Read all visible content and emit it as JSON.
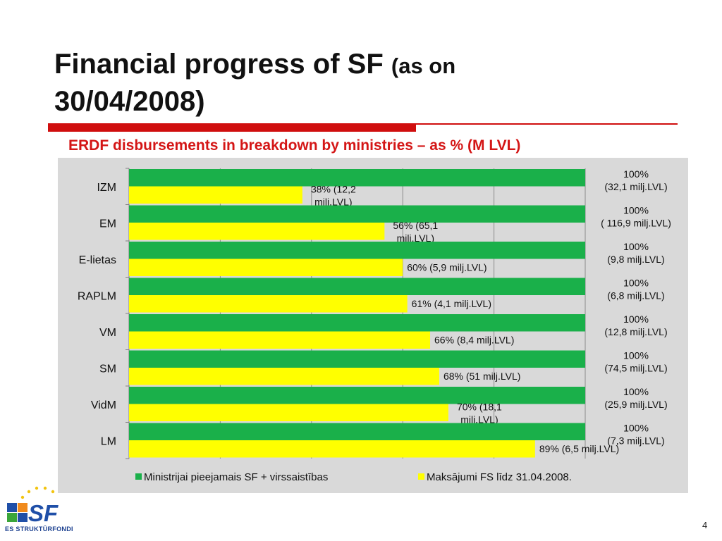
{
  "slide": {
    "title_main": "Financial progress of SF",
    "title_sub_inline": "(as on",
    "title_sub_line2": "30/04/2008)",
    "page_number": "4"
  },
  "logo": {
    "text": "ES STRUKTŪRFONDI",
    "mark": "SF",
    "colors": {
      "blue": "#1f4fa8",
      "orange": "#f08a1c",
      "green": "#3aa63a",
      "star": "#f2c40f"
    }
  },
  "chart_data": {
    "type": "bar",
    "orientation": "horizontal",
    "title": "ERDF disbursements in breakdown by ministries – as % (M LVL)",
    "categories": [
      "IZM",
      "EM",
      "E-lietas",
      "RAPLM",
      "VM",
      "SM",
      "VidM",
      "LM"
    ],
    "xlim": [
      0,
      100
    ],
    "grid": true,
    "legend_position": "bottom",
    "series": [
      {
        "name": "Ministrijai pieejamais SF + virssaistības",
        "color": "#1ab04a",
        "values": [
          100,
          100,
          100,
          100,
          100,
          100,
          100,
          100
        ],
        "labels": [
          [
            "100%",
            "(32,1 milj.LVL)"
          ],
          [
            "100%",
            "( 116,9 milj.LVL)"
          ],
          [
            "100%",
            "(9,8 milj.LVL)"
          ],
          [
            "100%",
            "(6,8 milj.LVL)"
          ],
          [
            "100%",
            "(12,8 milj.LVL)"
          ],
          [
            "100%",
            "(74,5 milj.LVL)"
          ],
          [
            "100%",
            "(25,9 milj.LVL)"
          ],
          [
            "100%",
            "(7,3 milj.LVL)"
          ]
        ]
      },
      {
        "name": "Maksājumi FS līdz 31.04.2008.",
        "color": "#ffff00",
        "values": [
          38,
          56,
          60,
          61,
          66,
          68,
          70,
          89
        ],
        "labels": [
          [
            "38% (12,2",
            "milj.LVL)"
          ],
          [
            "56% (65,1",
            "milj.LVL)"
          ],
          [
            "60% (5,9 milj.LVL)"
          ],
          [
            "61% (4,1 milj.LVL)"
          ],
          [
            "66% (8,4 milj.LVL)"
          ],
          [
            "68% (51 milj.LVL)"
          ],
          [
            "70% (18,1",
            "milj.LVL)"
          ],
          [
            "89% (6,5 milj.LVL)"
          ]
        ]
      }
    ]
  }
}
